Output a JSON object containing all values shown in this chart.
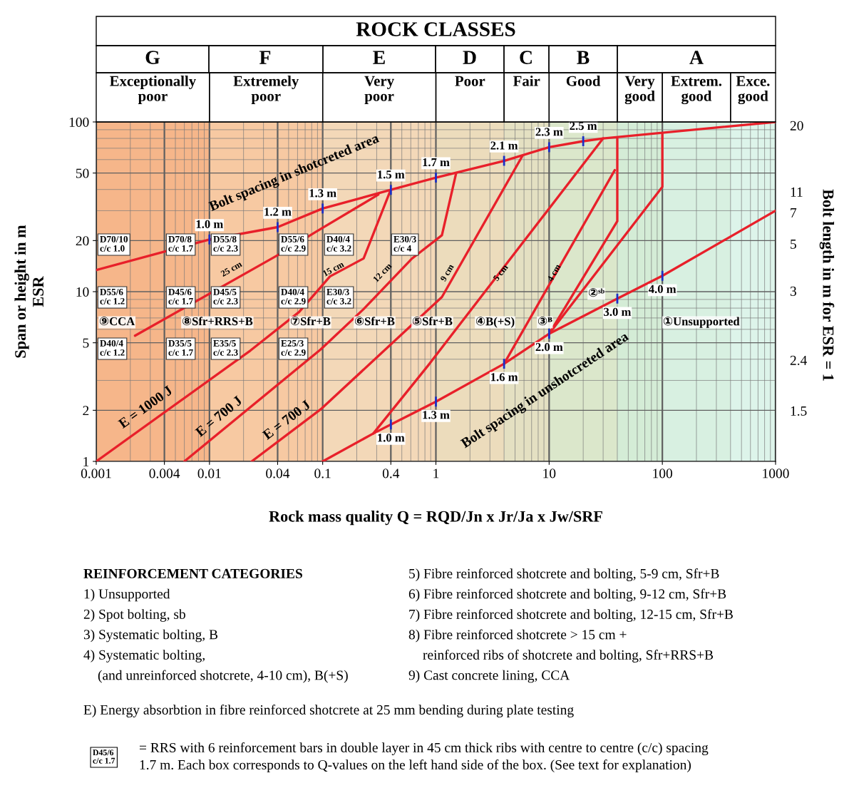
{
  "chart_data": {
    "type": "line",
    "title": "ROCK CLASSES",
    "xlabel": "Rock mass quality Q = RQD/Jn x Jr/Ja x Jw/SRF",
    "ylabel": "Span or height in m\nESR",
    "y2label": "Bolt length in m for ESR = 1",
    "log": "xy",
    "xlim": [
      0.001,
      1000
    ],
    "ylim": [
      1,
      100
    ],
    "xticks": [
      0.001,
      0.004,
      0.01,
      0.04,
      0.1,
      0.4,
      1,
      10,
      100,
      1000
    ],
    "yticks": [
      1,
      2,
      5,
      10,
      20,
      50,
      100
    ],
    "grid": true,
    "series": [
      {
        "color": "#e8202a",
        "x": [
          0.001,
          0.01,
          0.04,
          0.1,
          0.4,
          1,
          4,
          10,
          20,
          30,
          1000
        ],
        "values": [
          13.4,
          20.3,
          24,
          30.9,
          39.8,
          47,
          59,
          71,
          77,
          80,
          100
        ]
      },
      {
        "color": "#e8202a",
        "x": [
          0.1,
          0.28,
          0.4,
          1,
          4,
          10,
          40,
          100,
          1000
        ],
        "values": [
          1,
          1.46,
          1.65,
          2.25,
          3.76,
          5.65,
          9.1,
          12.4,
          30
        ]
      },
      {
        "color": "#e8202a",
        "x": [
          0.001,
          0.023,
          0.062,
          0.116,
          0.23,
          0.4
        ],
        "values": [
          1,
          4.5,
          7.6,
          12.3,
          15.7,
          40
        ]
      },
      {
        "color": "#e8202a",
        "x": [
          0.006,
          0.096,
          0.23,
          0.61,
          1.13,
          1.51
        ],
        "values": [
          1,
          4.57,
          7.9,
          15.6,
          21.5,
          50
        ]
      },
      {
        "color": "#e8202a",
        "x": [
          0.0236,
          0.098,
          1.13,
          5.8
        ],
        "values": [
          1,
          2.05,
          9.3,
          63
        ]
      },
      {
        "color": "#e8202a",
        "x": [
          0.0022,
          0.04,
          0.087,
          0.31
        ],
        "values": [
          5.5,
          16.4,
          22.5,
          37.3
        ]
      },
      {
        "color": "#e8202a",
        "x": [
          0.28,
          0.85,
          30
        ],
        "values": [
          1.46,
          3.66,
          80
        ]
      },
      {
        "color": "#e8202a",
        "x": [
          4,
          38
        ],
        "values": [
          3.76,
          52
        ]
      },
      {
        "color": "#e8202a",
        "x": [
          10,
          40,
          40
        ],
        "values": [
          5.65,
          26,
          80
        ]
      },
      {
        "color": "#e8202a",
        "x": [
          10,
          100,
          100
        ],
        "values": [
          5.65,
          41.5,
          85
        ]
      }
    ],
    "bands": [
      {
        "axis": "x",
        "from": 0.001,
        "to": 0.01,
        "label": "Exceptionally\npoor",
        "color": "#f6b68a"
      },
      {
        "axis": "x",
        "from": 0.01,
        "to": 0.1,
        "label": "Extremely\npoor",
        "color": "#f7c9a2"
      },
      {
        "axis": "x",
        "from": 0.1,
        "to": 1,
        "label": "Very\npoor",
        "color": "#f3d8b8"
      },
      {
        "axis": "x",
        "from": 1,
        "to": 4,
        "label": "Poor",
        "color": "#ecdcbc"
      },
      {
        "axis": "x",
        "from": 4,
        "to": 10,
        "label": "Fair",
        "color": "#e4e0c2"
      },
      {
        "axis": "x",
        "from": 10,
        "to": 40,
        "label": "Good",
        "color": "#dbe7cb"
      },
      {
        "axis": "x",
        "from": 40,
        "to": 100,
        "label": "Very\ngood",
        "color": "#d4ecd6"
      },
      {
        "axis": "x",
        "from": 100,
        "to": 400,
        "label": "Extrem.\ngood",
        "color": "#d8f0e1"
      },
      {
        "axis": "x",
        "from": 400,
        "to": 1000,
        "label": "Exce.\ngood",
        "color": "#ddf4ea"
      }
    ],
    "annotations": [
      {
        "text": "1.0 m",
        "x": 0.01,
        "y": 20.3
      },
      {
        "text": "1.2 m",
        "x": 0.04,
        "y": 24
      },
      {
        "text": "1.3 m",
        "x": 0.1,
        "y": 30.9
      },
      {
        "text": "1.5 m",
        "x": 0.4,
        "y": 39.8
      },
      {
        "text": "1.7 m",
        "x": 1,
        "y": 47
      },
      {
        "text": "2.1 m",
        "x": 4,
        "y": 59
      },
      {
        "text": "2.3 m",
        "x": 10,
        "y": 71
      },
      {
        "text": "2.5 m",
        "x": 20,
        "y": 77
      },
      {
        "text": "1.0 m",
        "x": 0.4,
        "y": 1.65
      },
      {
        "text": "1.3 m",
        "x": 1,
        "y": 2.25
      },
      {
        "text": "1.6 m",
        "x": 4,
        "y": 3.76
      },
      {
        "text": "2.0 m",
        "x": 10,
        "y": 5.65
      },
      {
        "text": "3.0 m",
        "x": 40,
        "y": 9.1
      },
      {
        "text": "4.0 m",
        "x": 100,
        "y": 12.4
      },
      "G",
      "F",
      "E",
      "D",
      "C",
      "B",
      "A",
      "D70/10\nc/c 1.0",
      "D70/8\nc/c 1.7",
      "D55/8\nc/c 2.3",
      "D55/6\nc/c 2.9",
      "D40/4\nc/c 3.2",
      "E30/3\nc/c 4",
      "D55/6\nc/c 1.2",
      "D45/6\nc/c 1.7",
      "D45/5\nc/c 2.3",
      "D40/4\nc/c 2.9",
      "E30/3\nc/c 3.2",
      "D40/4\nc/c 1.2",
      "D35/5\nc/c 1.7",
      "E35/5\nc/c 2.3",
      "E25/3\nc/c 2.9",
      "⑨CCA",
      "⑧Sfr+RRS+B",
      "⑦Sfr+B",
      "⑥Sfr+B",
      "⑤Sfr+B",
      "④B(+S)",
      "③ᴮ",
      "②ˢᵇ",
      "①Unsupported",
      "Bolt spacing in shotcreted area",
      "E = 1000 J",
      "E = 700 J",
      "E = 700 J",
      "25 cm",
      "15 cm",
      "12 cm",
      "9 cm",
      "5 cm",
      "4 cm",
      "Bolt spacing in unshotcreted area",
      "20",
      "11",
      "7",
      "5",
      "3",
      "2.4",
      "1.5",
      "REINFORCEMENT CATEGORIES",
      "1) Unsupported",
      "2) Spot bolting, sb",
      "3) Systematic bolting, B",
      "4) Systematic bolting,",
      "(and unreinforced shotcrete, 4-10 cm), B(+S)",
      "5) Fibre reinforced shotcrete and bolting, 5-9 cm, Sfr+B",
      "6) Fibre reinforced shotcrete and bolting, 9-12 cm, Sfr+B",
      "7) Fibre reinforced shotcrete and bolting, 12-15 cm, Sfr+B",
      "8) Fibre reinforced shotcrete > 15 cm +",
      "reinforced ribs of shotcrete and bolting, Sfr+RRS+B",
      "9) Cast concrete lining, CCA",
      "E) Energy absorbtion in fibre reinforced shotcrete at 25 mm bending during plate testing",
      "D45/6\nc/c 1.7",
      "= RRS with 6 reinforcement bars in double layer in 45 cm thick ribs with centre to centre (c/c) spacing\n1.7 m. Each box corresponds to Q-values on the left hand side of the box. (See text for explanation)"
    ]
  }
}
